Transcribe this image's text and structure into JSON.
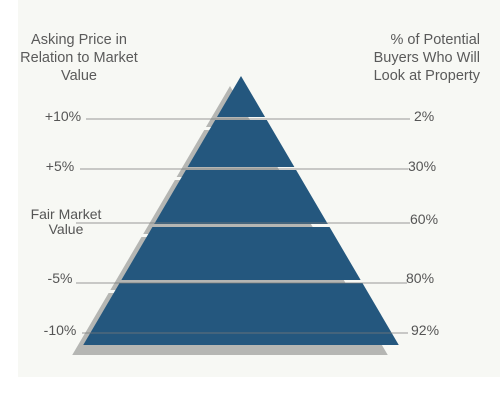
{
  "headers": {
    "left": "Asking Price in Relation to Market Value",
    "right": "% of Potential Buyers Who Will Look at Property"
  },
  "levels": [
    {
      "price": "+10%",
      "percent": "2%"
    },
    {
      "price": "+5%",
      "percent": "30%"
    },
    {
      "price": "Fair Market Value",
      "percent": "60%"
    },
    {
      "price": "-5%",
      "percent": "80%"
    },
    {
      "price": "-10%",
      "percent": "92%"
    }
  ],
  "colors": {
    "pyramid": "#24577e",
    "shadow": "#b5b6b3",
    "line": "#7a7a7a",
    "panel": "#f7f8f4"
  }
}
